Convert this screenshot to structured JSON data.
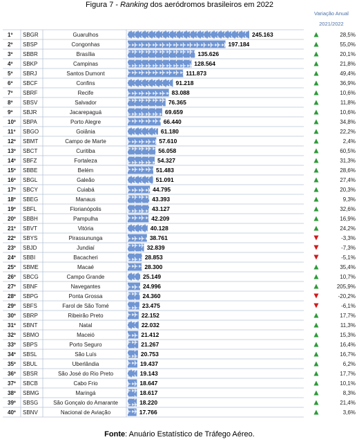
{
  "title": {
    "prefix": "Figura 7 - ",
    "italic": "Ranking",
    "suffix": " dos aeródromos brasileiros em 2022"
  },
  "variation_header": "Variação Anual",
  "variation_period": "2021/2022",
  "source": {
    "label": "Fonte",
    "text": ": Anuário Estatístico de Tráfego Aéreo."
  },
  "colors": {
    "bar": "#6f95d3",
    "bar_dark": "#5a80c0",
    "grid": "#b9c4d8",
    "up": "#2e9a3a",
    "down": "#d11a1a"
  },
  "icons": {
    "bar_glyph": "airplane-icon",
    "up": "triangle-up-icon",
    "down": "triangle-down-icon"
  },
  "chart_data": {
    "type": "bar",
    "orientation": "horizontal",
    "xlim": [
      0,
      245163
    ],
    "categories": [
      "Guarulhos",
      "Congonhas",
      "Brasília",
      "Campinas",
      "Santos Dumont",
      "Confins",
      "Recife",
      "Salvador",
      "Jacarepaguá",
      "Porto Alegre",
      "Goiânia",
      "Campo de Marte",
      "Curitiba",
      "Fortaleza",
      "Belém",
      "Galeão",
      "Cuiabá",
      "Manaus",
      "Florianópolis",
      "Pampulha",
      "Vitória",
      "Pirassununga",
      "Jundiaí",
      "Bacacheri",
      "Macaé",
      "Campo Grande",
      "Navegantes",
      "Ponta Grossa",
      "Farol de São Tomé",
      "Ribeirão Preto",
      "Natal",
      "Maceió",
      "Porto Seguro",
      "São Luís",
      "Uberlândia",
      "São José do Rio Preto",
      "Cabo Frio",
      "Maringá",
      "São Gonçalo do Amarante",
      "Nacional de Aviação"
    ],
    "ranks": [
      "1º",
      "2º",
      "3º",
      "4º",
      "5º",
      "6º",
      "7º",
      "8º",
      "9º",
      "10º",
      "11º",
      "12º",
      "13º",
      "14º",
      "15º",
      "16º",
      "17º",
      "18º",
      "19º",
      "20º",
      "21º",
      "22º",
      "23º",
      "24º",
      "25º",
      "26º",
      "27º",
      "28º",
      "29º",
      "30º",
      "31º",
      "32º",
      "33º",
      "34º",
      "35º",
      "36º",
      "37º",
      "38º",
      "39º",
      "40º"
    ],
    "codes": [
      "SBGR",
      "SBSP",
      "SBBR",
      "SBKP",
      "SBRJ",
      "SBCF",
      "SBRF",
      "SBSV",
      "SBJR",
      "SBPA",
      "SBGO",
      "SBMT",
      "SBCT",
      "SBFZ",
      "SBBE",
      "SBGL",
      "SBCY",
      "SBEG",
      "SBFL",
      "SBBH",
      "SBVT",
      "SBYS",
      "SBJD",
      "SBBI",
      "SBME",
      "SBCG",
      "SBNF",
      "SBPG",
      "SBFS",
      "SBRP",
      "SBNT",
      "SBMO",
      "SBPS",
      "SBSL",
      "SBUL",
      "SBSR",
      "SBCB",
      "SBMG",
      "SBSG",
      "SBNV"
    ],
    "values": [
      245163,
      197184,
      135626,
      128564,
      111873,
      91218,
      83088,
      76365,
      69659,
      66440,
      61180,
      57610,
      56058,
      54327,
      51483,
      51091,
      44795,
      43393,
      43127,
      42209,
      40128,
      38761,
      32839,
      28853,
      28300,
      25149,
      24996,
      24360,
      23475,
      22152,
      22032,
      21412,
      21267,
      20753,
      19437,
      19143,
      18647,
      18617,
      18220,
      17766
    ],
    "value_labels": [
      "245.163",
      "197.184",
      "135.626",
      "128.564",
      "111.873",
      "91.218",
      "83.088",
      "76.365",
      "69.659",
      "66.440",
      "61.180",
      "57.610",
      "56.058",
      "54.327",
      "51.483",
      "51.091",
      "44.795",
      "43.393",
      "43.127",
      "42.209",
      "40.128",
      "38.761",
      "32.839",
      "28.853",
      "28.300",
      "25.149",
      "24.996",
      "24.360",
      "23.475",
      "22.152",
      "22.032",
      "21.412",
      "21.267",
      "20.753",
      "19.437",
      "19.143",
      "18.647",
      "18.617",
      "18.220",
      "17.766"
    ],
    "variation": [
      28.5,
      55.0,
      20.1,
      21.8,
      49.4,
      36.9,
      10.6,
      11.8,
      10.6,
      34.8,
      22.2,
      2.4,
      60.5,
      31.3,
      28.6,
      27.4,
      20.3,
      9.3,
      32.6,
      16.9,
      24.2,
      -3.3,
      -7.3,
      -5.1,
      35.4,
      10.7,
      205.9,
      -20.2,
      -6.1,
      17.7,
      11.3,
      15.3,
      16.4,
      16.7,
      6.2,
      17.7,
      10.1,
      8.3,
      21.4,
      3.6
    ],
    "variation_labels": [
      "28,5%",
      "55,0%",
      "20,1%",
      "21,8%",
      "49,4%",
      "36,9%",
      "10,6%",
      "11,8%",
      "10,6%",
      "34,8%",
      "22,2%",
      "2,4%",
      "60,5%",
      "31,3%",
      "28,6%",
      "27,4%",
      "20,3%",
      "9,3%",
      "32,6%",
      "16,9%",
      "24,2%",
      "-3,3%",
      "-7,3%",
      "-5,1%",
      "35,4%",
      "10,7%",
      "205,9%",
      "-20,2%",
      "-6,1%",
      "17,7%",
      "11,3%",
      "15,3%",
      "16,4%",
      "16,7%",
      "6,2%",
      "17,7%",
      "10,1%",
      "8,3%",
      "21,4%",
      "3,6%"
    ]
  }
}
